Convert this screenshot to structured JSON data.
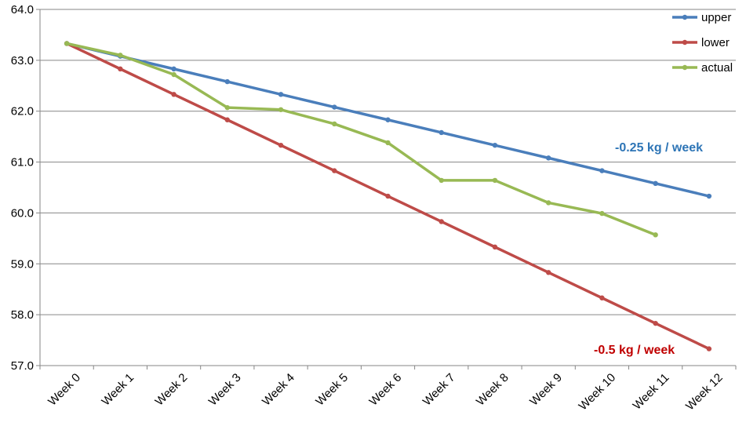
{
  "chart_data": {
    "type": "line",
    "categories": [
      "Week 0",
      "Week 1",
      "Week 2",
      "Week 3",
      "Week 4",
      "Week 5",
      "Week 6",
      "Week 7",
      "Week 8",
      "Week 9",
      "Week 10",
      "Week 11",
      "Week 12"
    ],
    "series": [
      {
        "name": "upper",
        "color": "#4a7ebb",
        "values": [
          63.33,
          63.08,
          62.83,
          62.58,
          62.33,
          62.08,
          61.83,
          61.58,
          61.33,
          61.08,
          60.83,
          60.58,
          60.33
        ]
      },
      {
        "name": "lower",
        "color": "#be4b48",
        "values": [
          63.33,
          62.83,
          62.33,
          61.83,
          61.33,
          60.83,
          60.33,
          59.83,
          59.33,
          58.83,
          58.33,
          57.83,
          57.33
        ]
      },
      {
        "name": "actual",
        "color": "#98b954",
        "values": [
          63.33,
          63.1,
          62.72,
          62.07,
          62.03,
          61.75,
          61.38,
          60.64,
          60.64,
          60.2,
          59.99,
          59.57,
          null
        ]
      }
    ],
    "ylim": [
      57.0,
      64.0
    ],
    "yticks": [
      "57.0",
      "58.0",
      "59.0",
      "60.0",
      "61.0",
      "62.0",
      "63.0",
      "64.0"
    ],
    "grid": true,
    "legend_position": "top-right",
    "annotations": [
      {
        "text": "-0.25 kg / week",
        "color": "#2e75b6"
      },
      {
        "text": "-0.5 kg / week",
        "color": "#c00000"
      }
    ]
  }
}
